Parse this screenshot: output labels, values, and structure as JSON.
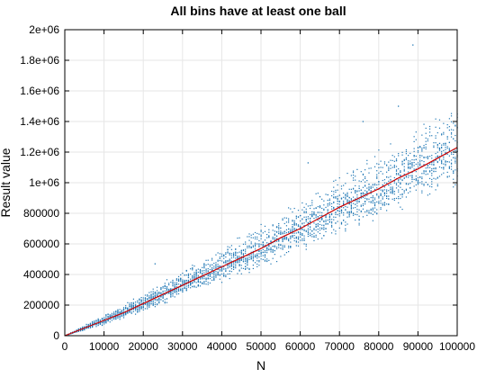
{
  "chart_data": {
    "type": "scatter",
    "title": "All bins have at least one ball",
    "xlabel": "N",
    "ylabel": "Result value",
    "xlim": [
      0,
      100000
    ],
    "ylim": [
      0,
      2000000
    ],
    "x_ticks": [
      0,
      10000,
      20000,
      30000,
      40000,
      50000,
      60000,
      70000,
      80000,
      90000,
      100000
    ],
    "x_tick_labels": [
      "0",
      "10000",
      "20000",
      "30000",
      "40000",
      "50000",
      "60000",
      "70000",
      "80000",
      "90000",
      "100000"
    ],
    "y_ticks": [
      0,
      200000,
      400000,
      600000,
      800000,
      1000000,
      1200000,
      1400000,
      1600000,
      1800000,
      2000000
    ],
    "y_tick_labels": [
      "0",
      "200000",
      "400000",
      "600000",
      "800000",
      "1e+06",
      "1.2e+06",
      "1.4e+06",
      "1.6e+06",
      "1.8e+06",
      "2e+06"
    ],
    "grid": true,
    "legend": "none",
    "series": [
      {
        "kind": "scatter",
        "color": "#1f77b4",
        "description": "many trials per N; spread grows with N",
        "band_x": [
          0,
          10000,
          20000,
          30000,
          40000,
          50000,
          60000,
          70000,
          80000,
          90000,
          100000
        ],
        "band_center": [
          0,
          100000,
          210000,
          330000,
          450000,
          570000,
          700000,
          840000,
          960000,
          1090000,
          1230000
        ],
        "band_low": [
          0,
          70000,
          150000,
          240000,
          330000,
          420000,
          520000,
          620000,
          720000,
          820000,
          920000
        ],
        "band_high": [
          0,
          140000,
          290000,
          440000,
          600000,
          760000,
          920000,
          1080000,
          1260000,
          1400000,
          1560000
        ],
        "outliers": [
          [
            88700,
            1900000
          ],
          [
            85000,
            1500000
          ],
          [
            76000,
            1400000
          ],
          [
            62000,
            1130000
          ],
          [
            23000,
            470000
          ]
        ]
      },
      {
        "kind": "line",
        "color": "#cc0000",
        "x": [
          0,
          5000,
          10000,
          15000,
          20000,
          25000,
          30000,
          35000,
          40000,
          45000,
          50000,
          55000,
          60000,
          65000,
          70000,
          75000,
          80000,
          85000,
          90000,
          95000,
          100000
        ],
        "y": [
          0,
          50000,
          100000,
          150000,
          210000,
          270000,
          330000,
          390000,
          450000,
          510000,
          570000,
          640000,
          700000,
          770000,
          840000,
          900000,
          960000,
          1030000,
          1090000,
          1160000,
          1230000
        ]
      }
    ]
  }
}
